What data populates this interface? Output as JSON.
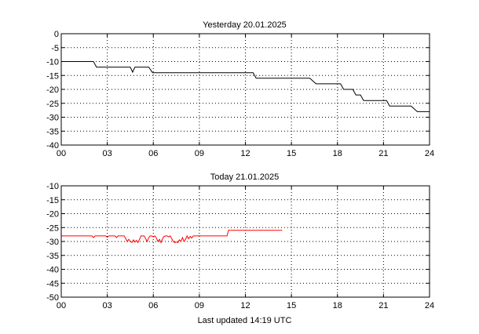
{
  "footer": "Last updated  14:19  UTC",
  "chart_data": [
    {
      "type": "line",
      "title": "Yesterday  20.01.2025",
      "xlabel": "",
      "ylabel": "",
      "xlim": [
        0,
        24
      ],
      "ylim": [
        -40,
        0
      ],
      "xticks": [
        "00",
        "03",
        "06",
        "09",
        "12",
        "15",
        "18",
        "21",
        "24"
      ],
      "xtick_values": [
        0,
        3,
        6,
        9,
        12,
        15,
        18,
        21,
        24
      ],
      "yticks": [
        "0",
        "-5",
        "-10",
        "-15",
        "-20",
        "-25",
        "-30",
        "-35",
        "-40"
      ],
      "ytick_values": [
        0,
        -5,
        -10,
        -15,
        -20,
        -25,
        -30,
        -35,
        -40
      ],
      "grid": true,
      "color": "#000000",
      "series": [
        {
          "x": [
            0,
            2.1,
            2.3,
            4.5,
            4.65,
            4.8,
            5.7,
            5.95,
            12.5,
            12.7,
            16.2,
            16.6,
            18.2,
            18.4,
            19,
            19.2,
            19.5,
            19.7,
            21.2,
            21.4,
            22.8,
            23.2,
            24
          ],
          "y": [
            -10,
            -10,
            -12,
            -12,
            -13.8,
            -12,
            -12,
            -14,
            -14,
            -16,
            -16,
            -18,
            -18,
            -20,
            -20,
            -22,
            -22,
            -24,
            -24,
            -26,
            -26,
            -28,
            -28
          ]
        }
      ]
    },
    {
      "type": "line",
      "title": "Today  21.01.2025",
      "xlabel": "",
      "ylabel": "",
      "xlim": [
        0,
        24
      ],
      "ylim": [
        -50,
        -10
      ],
      "xticks": [
        "00",
        "03",
        "06",
        "09",
        "12",
        "15",
        "18",
        "21",
        "24"
      ],
      "xtick_values": [
        0,
        3,
        6,
        9,
        12,
        15,
        18,
        21,
        24
      ],
      "yticks": [
        "-10",
        "-15",
        "-20",
        "-25",
        "-30",
        "-35",
        "-40",
        "-45",
        "-50"
      ],
      "ytick_values": [
        -10,
        -15,
        -20,
        -25,
        -30,
        -35,
        -40,
        -45,
        -50
      ],
      "grid": true,
      "color": "#ff0000",
      "series": [
        {
          "x": [
            0,
            2.0,
            2.1,
            2.2,
            2.9,
            3.0,
            3.1,
            3.5,
            3.6,
            3.7,
            4.1,
            4.2,
            4.3,
            4.4,
            4.5,
            4.6,
            4.7,
            4.8,
            4.9,
            5.0,
            5.1,
            5.2,
            5.3,
            5.4,
            5.5,
            5.6,
            5.7,
            5.8,
            5.9,
            6.0,
            6.1,
            6.2,
            6.3,
            6.4,
            6.5,
            6.6,
            6.7,
            6.8,
            6.9,
            7.0,
            7.1,
            7.2,
            7.3,
            7.4,
            7.5,
            7.6,
            7.7,
            7.8,
            7.9,
            8.0,
            8.1,
            8.2,
            8.3,
            8.4,
            8.5,
            8.6,
            8.7,
            8.8,
            9.0,
            10.8,
            10.9,
            14.4
          ],
          "y": [
            -28,
            -28,
            -28.6,
            -28,
            -28,
            -28.5,
            -28,
            -28,
            -28.6,
            -28,
            -28,
            -29,
            -30,
            -29.2,
            -30,
            -30.4,
            -29.4,
            -30.2,
            -29.6,
            -30.4,
            -29.2,
            -28,
            -28,
            -28,
            -29,
            -30,
            -28.6,
            -28,
            -28,
            -28.3,
            -28,
            -28.8,
            -30,
            -29.2,
            -30.4,
            -29,
            -28.2,
            -28,
            -28,
            -28.4,
            -28,
            -29,
            -30,
            -30.4,
            -30.2,
            -30.4,
            -29.4,
            -30,
            -28.6,
            -30,
            -29.2,
            -28,
            -29,
            -28.2,
            -28.8,
            -28,
            -28,
            -28,
            -28,
            -28,
            -26,
            -26
          ]
        }
      ]
    }
  ]
}
